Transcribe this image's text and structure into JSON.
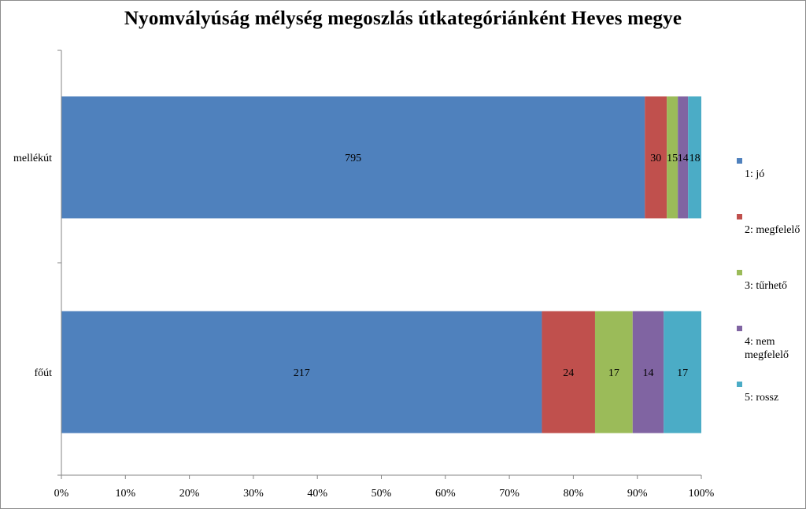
{
  "chart_data": {
    "type": "bar",
    "orientation": "horizontal",
    "stacked": "percent",
    "title": "Nyomvályúság mélység megoszlás útkategóriánként Heves megye",
    "categories": [
      "mellékút",
      "főút"
    ],
    "series": [
      {
        "name": "1: jó",
        "color": "#4F81BD",
        "values": [
          795,
          217
        ]
      },
      {
        "name": "2: megfelelő",
        "color": "#C0504D",
        "values": [
          30,
          24
        ]
      },
      {
        "name": "3: tűrhető",
        "color": "#9BBB59",
        "values": [
          15,
          17
        ]
      },
      {
        "name": "4: nem megfelelő",
        "color": "#8064A2",
        "values": [
          14,
          14
        ]
      },
      {
        "name": "5: rossz",
        "color": "#4BACC6",
        "values": [
          18,
          17
        ]
      }
    ],
    "xticks": [
      "0%",
      "10%",
      "20%",
      "30%",
      "40%",
      "50%",
      "60%",
      "70%",
      "80%",
      "90%",
      "100%"
    ],
    "xlim": [
      0,
      100
    ],
    "grid": false,
    "legend_position": "right"
  }
}
